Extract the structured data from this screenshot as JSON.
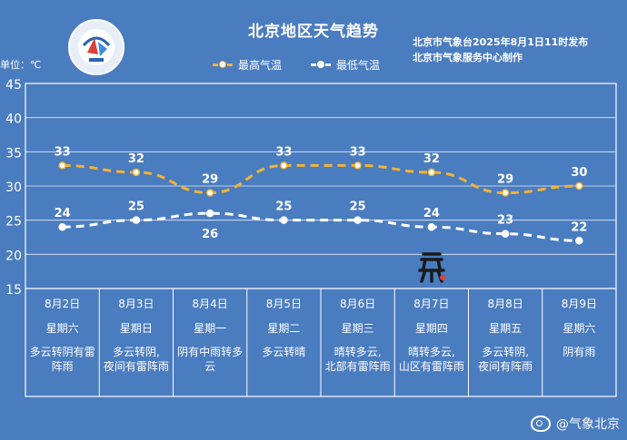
{
  "header": {
    "title": "北京地区天气趋势",
    "publisher_line1": "北京市气象台2025年8月1日11时发布",
    "publisher_line2": "北京市气象服务中心制作",
    "unit": "单位：℃"
  },
  "legend": {
    "high": "最高气温",
    "low": "最低气温"
  },
  "colors": {
    "background": "#4a7cc0",
    "high_line": "#f2b431",
    "low_line": "#ffffff",
    "grid": "#ffffff"
  },
  "chart_data": {
    "type": "line",
    "title": "北京地区天气趋势",
    "ylim": [
      15,
      45
    ],
    "yticks": [
      15,
      20,
      25,
      30,
      35,
      40,
      45
    ],
    "categories": [
      "8月2日",
      "8月3日",
      "8月4日",
      "8月5日",
      "8月6日",
      "8月7日",
      "8月8日",
      "8月9日"
    ],
    "weekdays": [
      "星期六",
      "星期日",
      "星期一",
      "星期二",
      "星期三",
      "星期四",
      "星期五",
      "星期六"
    ],
    "conditions": [
      "多云转阴有雷阵雨",
      "多云转阴,夜间有雷阵雨",
      "阴有中雨转多云",
      "多云转晴",
      "晴转多云,北部有雷阵雨",
      "晴转多云,山区有雷阵雨",
      "多云转阴,夜间有阵雨",
      "阴有雨"
    ],
    "series": [
      {
        "name": "最高气温",
        "values": [
          33,
          32,
          29,
          33,
          33,
          32,
          29,
          30
        ]
      },
      {
        "name": "最低气温",
        "values": [
          24,
          25,
          26,
          25,
          25,
          24,
          23,
          22
        ]
      }
    ],
    "grid": true,
    "legend_position": "top-center"
  },
  "footer": {
    "source": "@气象北京"
  }
}
